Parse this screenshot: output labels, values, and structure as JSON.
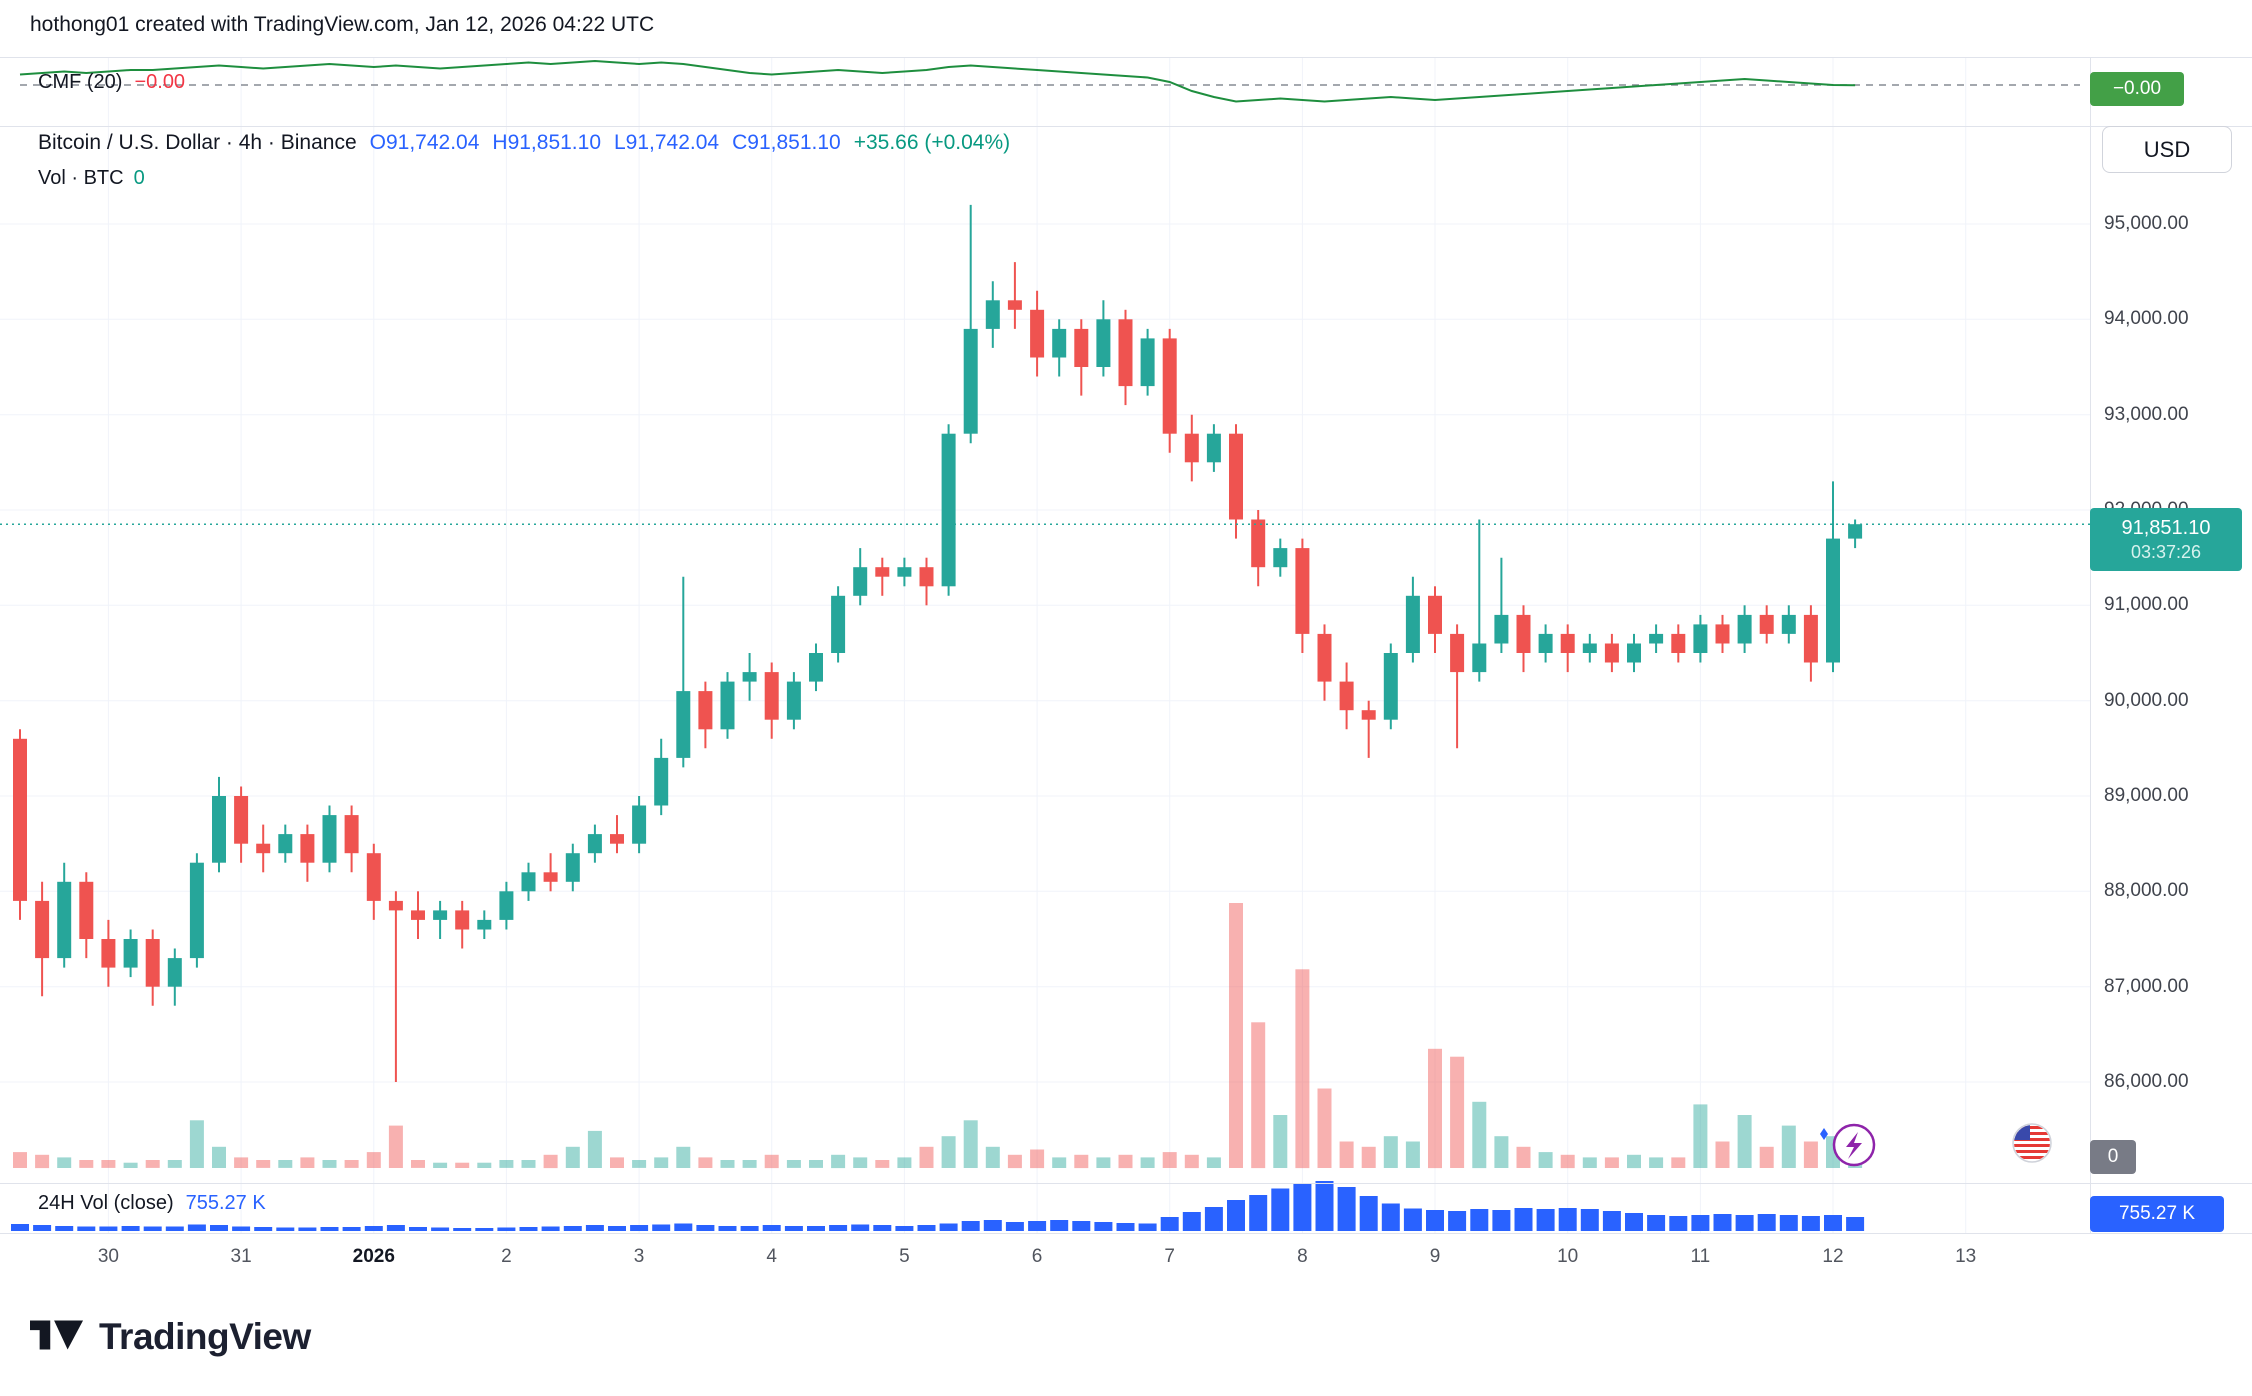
{
  "header": {
    "title": "hothong01 created with TradingView.com, Jan 12, 2026 04:22 UTC"
  },
  "cmf_pane": {
    "label": "CMF (20)",
    "value": "−0.00",
    "badge": "−0.00"
  },
  "main_legend": {
    "symbol": "Bitcoin / U.S. Dollar · 4h · Binance",
    "open": "O91,742.04",
    "high": "H91,851.10",
    "low": "L91,742.04",
    "close": "C91,851.10",
    "change": "+35.66 (+0.04%)",
    "vol_label": "Vol · BTC",
    "vol_value": "0"
  },
  "price_axis": {
    "currency": "USD",
    "labels": [
      {
        "t": "95,000.00",
        "p": 95000
      },
      {
        "t": "94,000.00",
        "p": 94000
      },
      {
        "t": "93,000.00",
        "p": 93000
      },
      {
        "t": "92,000.00",
        "p": 92000
      },
      {
        "t": "91,000.00",
        "p": 91000
      },
      {
        "t": "90,000.00",
        "p": 90000
      },
      {
        "t": "89,000.00",
        "p": 89000
      },
      {
        "t": "88,000.00",
        "p": 88000
      },
      {
        "t": "87,000.00",
        "p": 87000
      },
      {
        "t": "86,000.00",
        "p": 86000
      }
    ],
    "last_price_label": "91,851.10",
    "countdown": "03:37:26",
    "vol_zero_badge": "0",
    "vol24_badge": "755.27 K"
  },
  "date_axis": {
    "labels": [
      {
        "t": "30",
        "i": 4
      },
      {
        "t": "31",
        "i": 10
      },
      {
        "t": "2026",
        "i": 16,
        "bold": true
      },
      {
        "t": "2",
        "i": 22
      },
      {
        "t": "3",
        "i": 28
      },
      {
        "t": "4",
        "i": 34
      },
      {
        "t": "5",
        "i": 40
      },
      {
        "t": "6",
        "i": 46
      },
      {
        "t": "7",
        "i": 52
      },
      {
        "t": "8",
        "i": 58
      },
      {
        "t": "9",
        "i": 64
      },
      {
        "t": "10",
        "i": 70
      },
      {
        "t": "11",
        "i": 76
      },
      {
        "t": "12",
        "i": 82
      },
      {
        "t": "13",
        "i": 88
      }
    ]
  },
  "vol24_legend": {
    "label": "24H Vol (close)",
    "value": "755.27 K"
  },
  "footer": {
    "logo_text": "TradingView"
  },
  "colors": {
    "up": "#26a69a",
    "down": "#ef5350",
    "vol_up": "rgba(38,166,154,0.45)",
    "vol_down": "rgba(239,83,80,0.45)",
    "vol24": "#2962ff",
    "cmf": "#1e8e3e",
    "grid": "#f0f3fa",
    "separator": "#e0e3eb",
    "accent_blue": "#2962ff",
    "accent_green": "#089981",
    "badge_green": "#43a047",
    "badge_gray": "#787b86",
    "badge_price": "#26a69a"
  },
  "chart_data": {
    "type": "candlestick",
    "title": "Bitcoin / U.S. Dollar",
    "exchange": "Binance",
    "interval": "4h",
    "indicator": "CMF (20)",
    "last_price": 91851.1,
    "bar_open": 91742.04,
    "bar_high": 91851.1,
    "bar_low": 91742.04,
    "bar_close": 91851.1,
    "bar_change": 35.66,
    "bar_change_pct": 0.04,
    "volume_24h_total": "755.27 K",
    "price_axis_ticks": [
      95000,
      94000,
      93000,
      92000,
      91000,
      90000,
      89000,
      88000,
      87000,
      86000
    ],
    "ylim": [
      85000,
      96000
    ],
    "x_date_labels": [
      "30",
      "31",
      "2026",
      "2",
      "3",
      "4",
      "5",
      "6",
      "7",
      "8",
      "9",
      "10",
      "11",
      "12",
      "13"
    ],
    "ohlc": [
      [
        89600,
        89700,
        87700,
        87900
      ],
      [
        87900,
        88100,
        86900,
        87300
      ],
      [
        87300,
        88300,
        87200,
        88100
      ],
      [
        88100,
        88200,
        87300,
        87500
      ],
      [
        87500,
        87700,
        87000,
        87200
      ],
      [
        87200,
        87600,
        87100,
        87500
      ],
      [
        87500,
        87600,
        86800,
        87000
      ],
      [
        87000,
        87400,
        86800,
        87300
      ],
      [
        87300,
        88400,
        87200,
        88300
      ],
      [
        88300,
        89200,
        88200,
        89000
      ],
      [
        89000,
        89100,
        88300,
        88500
      ],
      [
        88500,
        88700,
        88200,
        88400
      ],
      [
        88400,
        88700,
        88300,
        88600
      ],
      [
        88600,
        88700,
        88100,
        88300
      ],
      [
        88300,
        88900,
        88200,
        88800
      ],
      [
        88800,
        88900,
        88200,
        88400
      ],
      [
        88400,
        88500,
        87700,
        87900
      ],
      [
        87900,
        88000,
        86000,
        87800
      ],
      [
        87800,
        88000,
        87500,
        87700
      ],
      [
        87700,
        87900,
        87500,
        87800
      ],
      [
        87800,
        87900,
        87400,
        87600
      ],
      [
        87600,
        87800,
        87500,
        87700
      ],
      [
        87700,
        88100,
        87600,
        88000
      ],
      [
        88000,
        88300,
        87900,
        88200
      ],
      [
        88200,
        88400,
        88000,
        88100
      ],
      [
        88100,
        88500,
        88000,
        88400
      ],
      [
        88400,
        88700,
        88300,
        88600
      ],
      [
        88600,
        88800,
        88400,
        88500
      ],
      [
        88500,
        89000,
        88400,
        88900
      ],
      [
        88900,
        89600,
        88800,
        89400
      ],
      [
        89400,
        91300,
        89300,
        90100
      ],
      [
        90100,
        90200,
        89500,
        89700
      ],
      [
        89700,
        90300,
        89600,
        90200
      ],
      [
        90200,
        90500,
        90000,
        90300
      ],
      [
        90300,
        90400,
        89600,
        89800
      ],
      [
        89800,
        90300,
        89700,
        90200
      ],
      [
        90200,
        90600,
        90100,
        90500
      ],
      [
        90500,
        91200,
        90400,
        91100
      ],
      [
        91100,
        91600,
        91000,
        91400
      ],
      [
        91400,
        91500,
        91100,
        91300
      ],
      [
        91300,
        91500,
        91200,
        91400
      ],
      [
        91400,
        91500,
        91000,
        91200
      ],
      [
        91200,
        92900,
        91100,
        92800
      ],
      [
        92800,
        95200,
        92700,
        93900
      ],
      [
        93900,
        94400,
        93700,
        94200
      ],
      [
        94200,
        94600,
        93900,
        94100
      ],
      [
        94100,
        94300,
        93400,
        93600
      ],
      [
        93600,
        94000,
        93400,
        93900
      ],
      [
        93900,
        94000,
        93200,
        93500
      ],
      [
        93500,
        94200,
        93400,
        94000
      ],
      [
        94000,
        94100,
        93100,
        93300
      ],
      [
        93300,
        93900,
        93200,
        93800
      ],
      [
        93800,
        93900,
        92600,
        92800
      ],
      [
        92800,
        93000,
        92300,
        92500
      ],
      [
        92500,
        92900,
        92400,
        92800
      ],
      [
        92800,
        92900,
        91700,
        91900
      ],
      [
        91900,
        92000,
        91200,
        91400
      ],
      [
        91400,
        91700,
        91300,
        91600
      ],
      [
        91600,
        91700,
        90500,
        90700
      ],
      [
        90700,
        90800,
        90000,
        90200
      ],
      [
        90200,
        90400,
        89700,
        89900
      ],
      [
        89900,
        90000,
        89400,
        89800
      ],
      [
        89800,
        90600,
        89700,
        90500
      ],
      [
        90500,
        91300,
        90400,
        91100
      ],
      [
        91100,
        91200,
        90500,
        90700
      ],
      [
        90700,
        90800,
        89500,
        90300
      ],
      [
        90300,
        91900,
        90200,
        90600
      ],
      [
        90600,
        91500,
        90500,
        90900
      ],
      [
        90900,
        91000,
        90300,
        90500
      ],
      [
        90500,
        90800,
        90400,
        90700
      ],
      [
        90700,
        90800,
        90300,
        90500
      ],
      [
        90500,
        90700,
        90400,
        90600
      ],
      [
        90600,
        90700,
        90300,
        90400
      ],
      [
        90400,
        90700,
        90300,
        90600
      ],
      [
        90600,
        90800,
        90500,
        90700
      ],
      [
        90700,
        90800,
        90400,
        90500
      ],
      [
        90500,
        90900,
        90400,
        90800
      ],
      [
        90800,
        90900,
        90500,
        90600
      ],
      [
        90600,
        91000,
        90500,
        90900
      ],
      [
        90900,
        91000,
        90600,
        90700
      ],
      [
        90700,
        91000,
        90600,
        90900
      ],
      [
        90900,
        91000,
        90200,
        90400
      ],
      [
        90400,
        92300,
        90300,
        91700
      ],
      [
        91700,
        91900,
        91600,
        91851
      ]
    ],
    "volume_rel": [
      6,
      5,
      4,
      3,
      3,
      2,
      3,
      3,
      18,
      8,
      4,
      3,
      3,
      4,
      3,
      3,
      6,
      16,
      3,
      2,
      2,
      2,
      3,
      3,
      5,
      8,
      14,
      4,
      3,
      4,
      8,
      4,
      3,
      3,
      5,
      3,
      3,
      5,
      4,
      3,
      4,
      8,
      12,
      18,
      8,
      5,
      7,
      4,
      5,
      4,
      5,
      4,
      6,
      5,
      4,
      100,
      55,
      20,
      75,
      30,
      10,
      8,
      12,
      10,
      45,
      42,
      25,
      12,
      8,
      6,
      5,
      4,
      4,
      5,
      4,
      4,
      24,
      10,
      20,
      8,
      16,
      10,
      12,
      6
    ],
    "volume_24h_rel": [
      14,
      12,
      10,
      9,
      9,
      10,
      9,
      9,
      13,
      12,
      9,
      8,
      7,
      7,
      8,
      8,
      10,
      12,
      8,
      7,
      6,
      6,
      7,
      8,
      9,
      10,
      12,
      10,
      12,
      13,
      15,
      12,
      10,
      10,
      12,
      10,
      10,
      12,
      13,
      12,
      10,
      12,
      15,
      20,
      22,
      18,
      20,
      22,
      20,
      18,
      16,
      15,
      28,
      38,
      48,
      62,
      72,
      85,
      95,
      100,
      88,
      70,
      55,
      45,
      42,
      40,
      44,
      42,
      46,
      44,
      46,
      44,
      40,
      36,
      32,
      30,
      32,
      34,
      32,
      34,
      32,
      30,
      32,
      28
    ],
    "cmf_20": [
      0.035,
      0.04,
      0.045,
      0.04,
      0.045,
      0.05,
      0.05,
      0.055,
      0.06,
      0.065,
      0.06,
      0.055,
      0.06,
      0.065,
      0.07,
      0.065,
      0.06,
      0.065,
      0.06,
      0.055,
      0.06,
      0.065,
      0.07,
      0.075,
      0.07,
      0.075,
      0.08,
      0.075,
      0.07,
      0.075,
      0.07,
      0.06,
      0.05,
      0.04,
      0.035,
      0.04,
      0.045,
      0.05,
      0.045,
      0.04,
      0.045,
      0.05,
      0.06,
      0.065,
      0.06,
      0.055,
      0.05,
      0.045,
      0.04,
      0.035,
      0.03,
      0.025,
      0.01,
      -0.02,
      -0.04,
      -0.055,
      -0.05,
      -0.045,
      -0.05,
      -0.055,
      -0.05,
      -0.045,
      -0.04,
      -0.045,
      -0.05,
      -0.045,
      -0.04,
      -0.035,
      -0.03,
      -0.025,
      -0.02,
      -0.015,
      -0.01,
      -0.005,
      0,
      0.005,
      0.01,
      0.015,
      0.02,
      0.015,
      0.01,
      0.005,
      0,
      -0.001
    ]
  }
}
